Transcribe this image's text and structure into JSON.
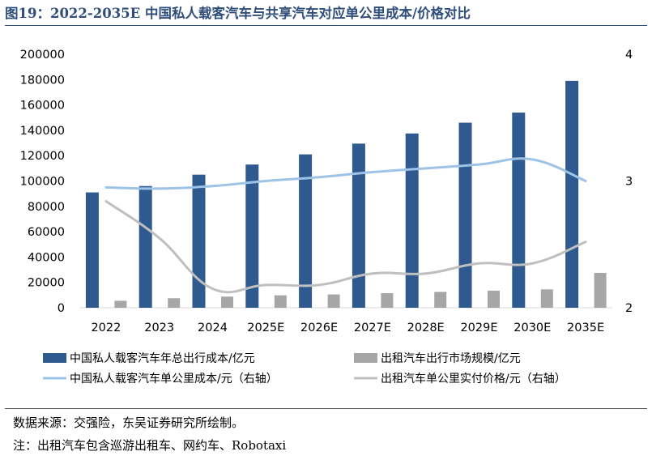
{
  "figure_title": "图19：2022-2035E 中国私人载客汽车与共享汽车对应单公里成本/价格对比",
  "source_text": "数据来源：交强险，东吴证券研究所绘制。",
  "note_text": "注：出租汽车包含巡游出租车、网约车、Robotaxi",
  "chart_data": {
    "type": "bar",
    "title": "",
    "categories": [
      "2022",
      "2023",
      "2024",
      "2025E",
      "2026E",
      "2027E",
      "2028E",
      "2029E",
      "2030E",
      "2035E"
    ],
    "ylim": [
      0,
      200000
    ],
    "yticks": [
      0,
      20000,
      40000,
      60000,
      80000,
      100000,
      120000,
      140000,
      160000,
      180000,
      200000
    ],
    "y2lim": [
      2,
      4
    ],
    "y2ticks": [
      2,
      3,
      4
    ],
    "grid": false,
    "legend_position": "bottom",
    "series": [
      {
        "name": "中国私人载客汽车年总出行成本/亿元",
        "kind": "bar",
        "axis": "left",
        "color": "#2f5a8f",
        "values": [
          91000,
          96000,
          105000,
          113000,
          121000,
          129500,
          137500,
          146000,
          154000,
          179000
        ]
      },
      {
        "name": "出租汽车出行市场规模/亿元",
        "kind": "bar",
        "axis": "left",
        "color": "#a6a6a6",
        "values": [
          5500,
          7500,
          8800,
          9800,
          10500,
          11500,
          12500,
          13500,
          14500,
          27500
        ]
      },
      {
        "name": "中国私人载客汽车单公里成本/元（右轴）",
        "kind": "line",
        "axis": "right",
        "color": "#9dc3e6",
        "values": [
          2.95,
          2.94,
          2.96,
          3.0,
          3.03,
          3.07,
          3.1,
          3.13,
          3.17,
          3.0
        ]
      },
      {
        "name": "出租汽车单公里实付价格/元（右轴）",
        "kind": "line",
        "axis": "right",
        "color": "#bfbfbf",
        "values": [
          2.84,
          2.55,
          2.15,
          2.18,
          2.18,
          2.27,
          2.27,
          2.35,
          2.35,
          2.52
        ]
      }
    ]
  }
}
